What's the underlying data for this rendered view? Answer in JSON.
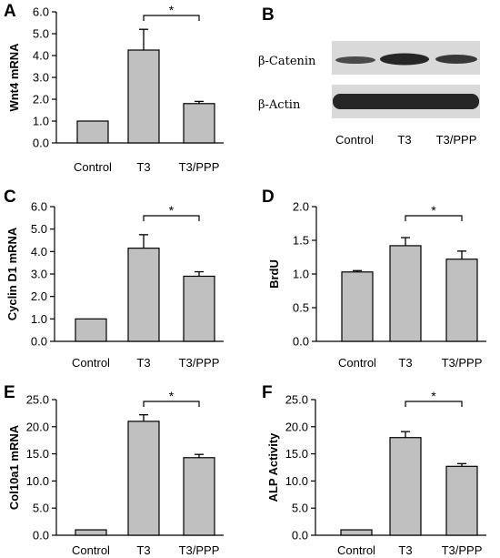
{
  "chart_data": [
    {
      "panel": "A",
      "type": "bar",
      "categories": [
        "Control",
        "T3",
        "T3/PPP"
      ],
      "values": [
        1.0,
        4.25,
        1.8
      ],
      "errors": [
        0,
        0.95,
        0.1
      ],
      "ylabel": "Wnt4 mRNA",
      "ylim": [
        0,
        6
      ],
      "yticks": [
        "0.0",
        "1.0",
        "2.0",
        "3.0",
        "4.0",
        "5.0",
        "6.0"
      ],
      "yticks_values": [
        0,
        1,
        2,
        3,
        4,
        5,
        6
      ],
      "significance": {
        "from": 1,
        "to": 2,
        "label": "*"
      }
    },
    {
      "panel": "C",
      "type": "bar",
      "categories": [
        "Control",
        "T3",
        "T3/PPP"
      ],
      "values": [
        1.0,
        4.15,
        2.9
      ],
      "errors": [
        0,
        0.6,
        0.2
      ],
      "ylabel": "Cyclin D1 mRNA",
      "ylim": [
        0,
        6
      ],
      "yticks": [
        "0.0",
        "1.0",
        "2.0",
        "3.0",
        "4.0",
        "5.0",
        "6.0"
      ],
      "yticks_values": [
        0,
        1,
        2,
        3,
        4,
        5,
        6
      ],
      "significance": {
        "from": 1,
        "to": 2,
        "label": "*"
      }
    },
    {
      "panel": "D",
      "type": "bar",
      "categories": [
        "Control",
        "T3",
        "T3/PPP"
      ],
      "values": [
        1.03,
        1.42,
        1.22
      ],
      "errors": [
        0.02,
        0.12,
        0.12
      ],
      "ylabel": "BrdU",
      "ylim": [
        0,
        2
      ],
      "yticks": [
        "0.0",
        "0.5",
        "1.0",
        "1.5",
        "2.0"
      ],
      "yticks_values": [
        0,
        0.5,
        1,
        1.5,
        2
      ],
      "significance": {
        "from": 1,
        "to": 2,
        "label": "*"
      }
    },
    {
      "panel": "E",
      "type": "bar",
      "categories": [
        "Control",
        "T3",
        "T3/PPP"
      ],
      "values": [
        1.0,
        21.0,
        14.3
      ],
      "errors": [
        0,
        1.2,
        0.6
      ],
      "ylabel": "Col10a1 mRNA",
      "ylim": [
        0,
        25
      ],
      "yticks": [
        "0.0",
        "5.0",
        "10.0",
        "15.0",
        "20.0",
        "25.0"
      ],
      "yticks_values": [
        0,
        5,
        10,
        15,
        20,
        25
      ],
      "significance": {
        "from": 1,
        "to": 2,
        "label": "*"
      }
    },
    {
      "panel": "F",
      "type": "bar",
      "categories": [
        "Control",
        "T3",
        "T3/PPP"
      ],
      "values": [
        1.0,
        18.0,
        12.7
      ],
      "errors": [
        0,
        1.1,
        0.5
      ],
      "ylabel": "ALP Activity",
      "ylim": [
        0,
        25
      ],
      "yticks": [
        "0.0",
        "5.0",
        "10.0",
        "15.0",
        "20.0",
        "25.0"
      ],
      "yticks_values": [
        0,
        5,
        10,
        15,
        20,
        25
      ],
      "significance": {
        "from": 1,
        "to": 2,
        "label": "*"
      }
    }
  ],
  "blot": {
    "panel": "B",
    "rows": [
      "β-Catenin",
      "β-Actin"
    ],
    "lanes": [
      "Control",
      "T3",
      "T3/PPP"
    ],
    "colors": {
      "background": "#d9d9d9",
      "band": "#262626"
    }
  },
  "colors": {
    "bar_fill": "#c0c0c0",
    "outline": "#000000"
  }
}
